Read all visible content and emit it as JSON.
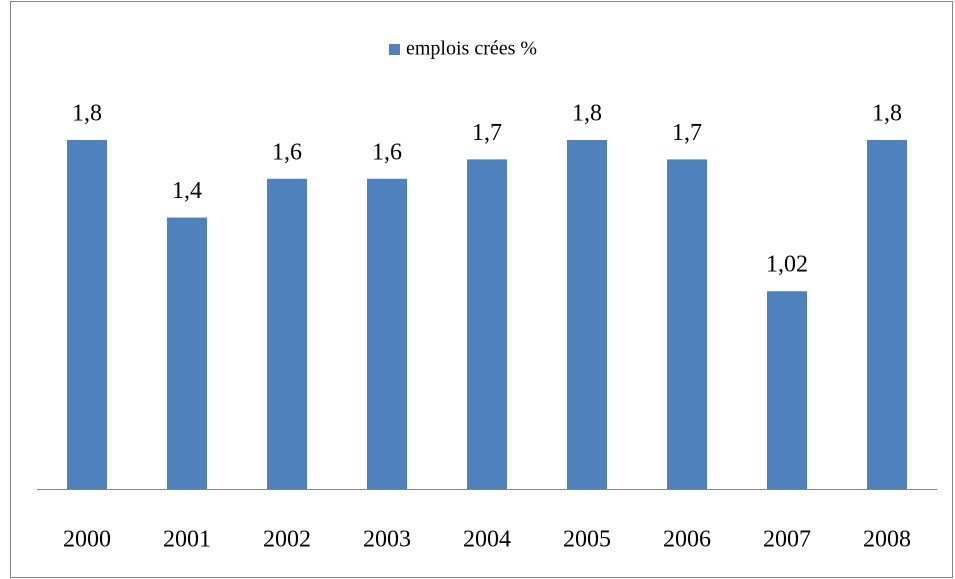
{
  "chart_data": {
    "type": "bar",
    "categories": [
      "2000",
      "2001",
      "2002",
      "2003",
      "2004",
      "2005",
      "2006",
      "2007",
      "2008"
    ],
    "series": [
      {
        "name": "emplois crées %",
        "color": "#4f81bd",
        "values": [
          1.8,
          1.4,
          1.6,
          1.6,
          1.7,
          1.8,
          1.7,
          1.02,
          1.8
        ],
        "value_labels": [
          "1,8",
          "1,4",
          "1,6",
          "1,6",
          "1,7",
          "1,8",
          "1,7",
          "1,02",
          "1,8"
        ]
      }
    ],
    "legend": "top"
  }
}
